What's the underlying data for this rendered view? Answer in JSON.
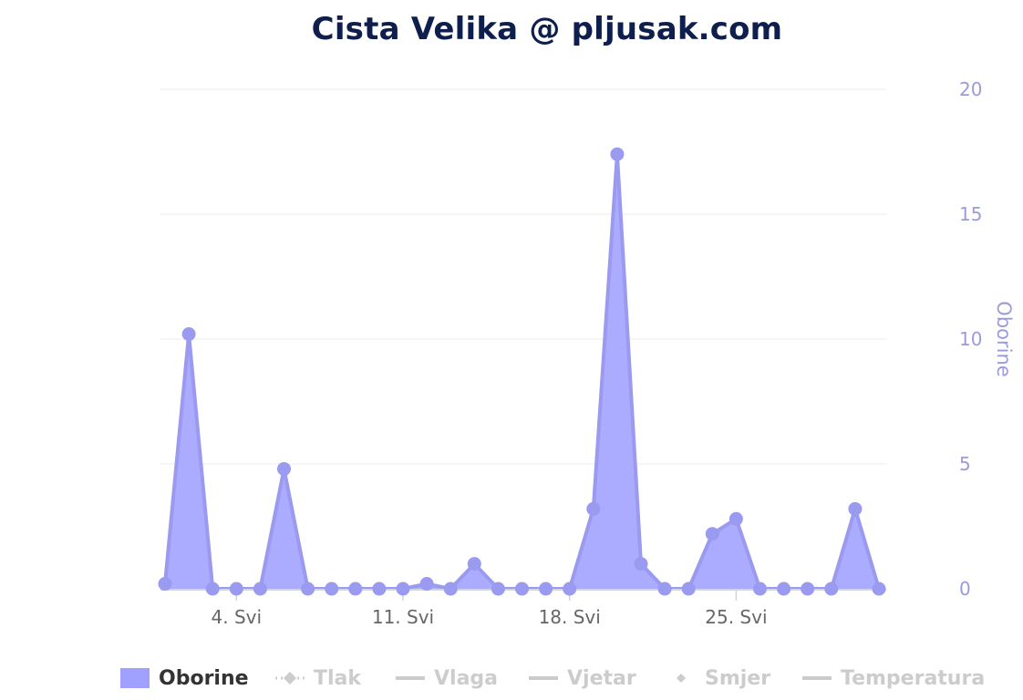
{
  "title": "Cista Velika @ pljusak.com",
  "colors": {
    "precip_fill": "#a7a7ff",
    "precip_line": "#9a9af0",
    "precip_marker": "#9a9af0",
    "grid": "#eeeeee",
    "title": "#0f1f4d",
    "axis_label": "#9b9bdc",
    "inactive_legend": "#cccccc"
  },
  "legend": {
    "items": [
      {
        "label": "Oborine",
        "icon": "area-swatch-icon",
        "active": true
      },
      {
        "label": "Tlak",
        "icon": "line-diamond-marker-icon",
        "active": false
      },
      {
        "label": "Vlaga",
        "icon": "line-icon",
        "active": false
      },
      {
        "label": "Vjetar",
        "icon": "line-icon",
        "active": false
      },
      {
        "label": "Smjer",
        "icon": "diamond-marker-icon",
        "active": false
      },
      {
        "label": "Temperatura",
        "icon": "line-icon",
        "active": false
      }
    ]
  },
  "chart_data": {
    "type": "area",
    "title": "Cista Velika @ pljusak.com",
    "x": [
      1,
      2,
      3,
      4,
      5,
      6,
      7,
      8,
      9,
      10,
      11,
      12,
      13,
      14,
      15,
      16,
      17,
      18,
      19,
      20,
      21,
      22,
      23,
      24,
      25,
      26,
      27,
      28,
      29,
      30,
      31
    ],
    "x_tick_labels": [
      "4. Svi",
      "11. Svi",
      "18. Svi",
      "25. Svi"
    ],
    "x_tick_days": [
      4,
      11,
      18,
      25
    ],
    "y_axis": {
      "label": "Oborine",
      "position": "right",
      "ticks": [
        0,
        5,
        10,
        15,
        20
      ],
      "ylim": [
        0,
        20
      ]
    },
    "series": [
      {
        "name": "Oborine",
        "values": [
          0.2,
          10.2,
          0,
          0,
          0,
          4.8,
          0,
          0,
          0,
          0,
          0,
          0.2,
          0,
          1.0,
          0,
          0,
          0,
          0,
          3.2,
          17.4,
          1.0,
          0,
          0,
          2.2,
          2.8,
          0,
          0,
          0,
          0,
          3.2,
          0
        ]
      }
    ],
    "grid": true,
    "legend_position": "bottom"
  }
}
